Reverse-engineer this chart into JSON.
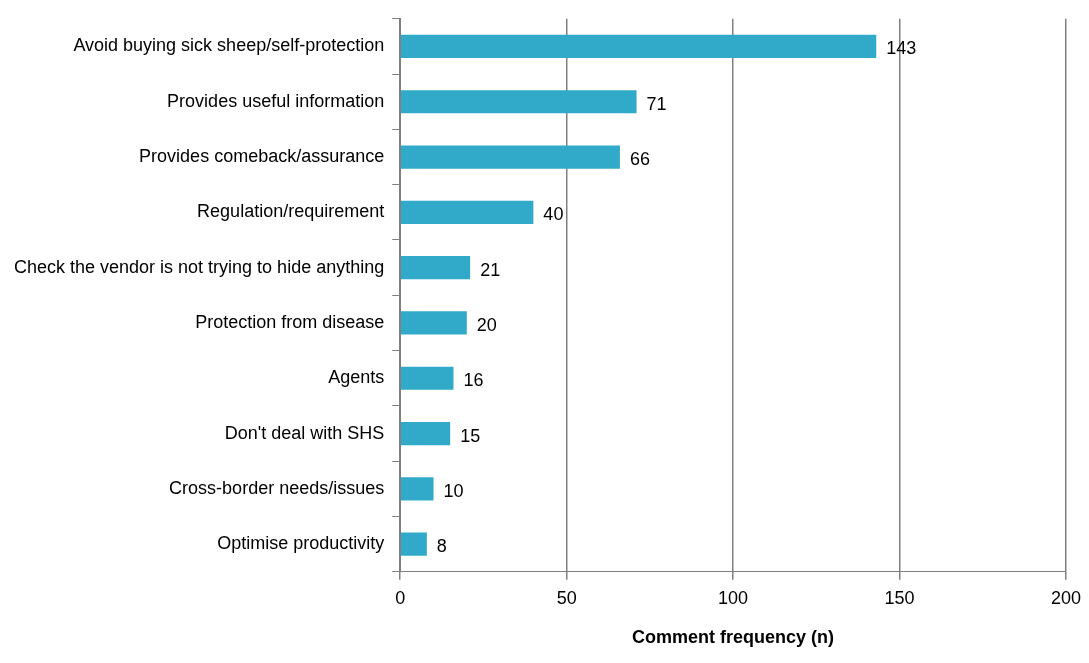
{
  "chart_data": {
    "type": "bar",
    "orientation": "horizontal",
    "xlabel": "Comment frequency (n)",
    "categories": [
      "Avoid buying sick sheep/self-protection",
      "Provides useful information",
      "Provides comeback/assurance",
      "Regulation/requirement",
      "Check the vendor is not trying to hide anything",
      "Protection from disease",
      "Agents",
      "Don't deal with SHS",
      "Cross-border needs/issues",
      "Optimise productivity"
    ],
    "values": [
      143,
      71,
      66,
      40,
      21,
      20,
      16,
      15,
      10,
      8
    ],
    "color": "#31a9c9",
    "xlim": [
      0,
      200
    ],
    "xticks": [
      0,
      50,
      100,
      150,
      200
    ],
    "grid": "x",
    "legend": false,
    "data_labels": true
  }
}
